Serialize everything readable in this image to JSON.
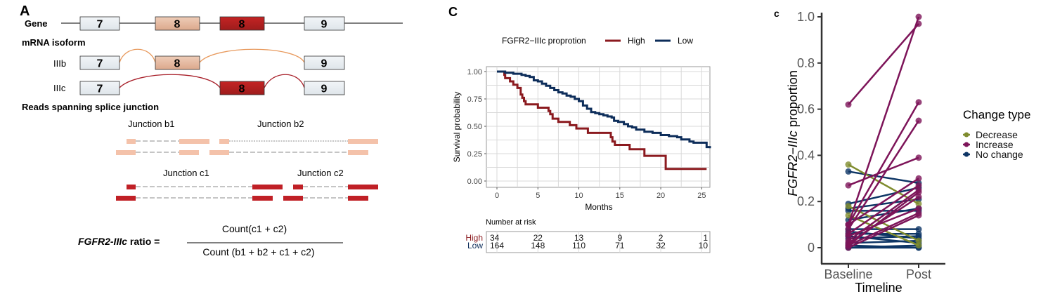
{
  "panel_a": {
    "label": "A",
    "gene_label": "Gene",
    "mrna_label": "mRNA isoform",
    "reads_label": "Reads spanning splice junction",
    "isoform_b": "IIIb",
    "isoform_c": "IIIc",
    "exons": {
      "e7": "7",
      "e8b": "8",
      "e8c": "8",
      "e9": "9"
    },
    "junctions": {
      "b1": "Junction b1",
      "b2": "Junction b2",
      "c1": "Junction c1",
      "c2": "Junction c2"
    },
    "formula": {
      "lhs_italic": "FGFR2-IIIc",
      "lhs_rest": " ratio =",
      "numerator": "Count(c1 + c2)",
      "denominator": "Count (b1 + b2 + c1 + c2)"
    },
    "colors": {
      "exon_grey": "#e9edf1",
      "exon_b": "#e8bba2",
      "exon_c": "#b5221f",
      "read_b": "#f4c2aa",
      "read_c": "#c02026",
      "arc_b": "#e89a5e",
      "arc_c": "#a8202a"
    }
  },
  "chart_data": [
    {
      "type": "line",
      "panel_label": "C",
      "subtype": "kaplan-meier",
      "title": "",
      "legend_title": "FGFR2−IIIc proprotion",
      "legend_position": "top",
      "xlabel": "Months",
      "ylabel": "Survival probability",
      "xlim": [
        0,
        26
      ],
      "ylim": [
        0,
        1
      ],
      "xticks": [
        0,
        5,
        10,
        15,
        20,
        25
      ],
      "yticks": [
        "0.00",
        "0.25",
        "0.50",
        "0.75",
        "1.00"
      ],
      "grid": true,
      "series": [
        {
          "name": "High",
          "color": "#8b1a1f",
          "steps": [
            [
              0.5,
              1.0
            ],
            [
              0.9,
              0.97
            ],
            [
              1.0,
              0.94
            ],
            [
              1.6,
              0.91
            ],
            [
              2.0,
              0.88
            ],
            [
              2.5,
              0.85
            ],
            [
              2.9,
              0.79
            ],
            [
              3.1,
              0.76
            ],
            [
              3.3,
              0.73
            ],
            [
              3.5,
              0.7
            ],
            [
              5.0,
              0.67
            ],
            [
              6.3,
              0.64
            ],
            [
              6.5,
              0.61
            ],
            [
              6.8,
              0.57
            ],
            [
              7.5,
              0.54
            ],
            [
              8.9,
              0.51
            ],
            [
              9.7,
              0.48
            ],
            [
              11.1,
              0.44
            ],
            [
              13.9,
              0.4
            ],
            [
              14.1,
              0.36
            ],
            [
              14.4,
              0.33
            ],
            [
              16.2,
              0.29
            ],
            [
              18.0,
              0.23
            ],
            [
              20.6,
              0.11
            ],
            [
              25.6,
              0.11
            ]
          ]
        },
        {
          "name": "Low",
          "color": "#0d2d5a",
          "steps": [
            [
              0,
              1.0
            ],
            [
              1,
              0.99
            ],
            [
              2,
              0.98
            ],
            [
              3,
              0.97
            ],
            [
              3.5,
              0.96
            ],
            [
              4,
              0.95
            ],
            [
              4.5,
              0.92
            ],
            [
              5,
              0.91
            ],
            [
              5.5,
              0.89
            ],
            [
              6,
              0.87
            ],
            [
              6.5,
              0.85
            ],
            [
              7,
              0.83
            ],
            [
              7.5,
              0.81
            ],
            [
              8,
              0.8
            ],
            [
              8.5,
              0.78
            ],
            [
              9,
              0.77
            ],
            [
              9.5,
              0.75
            ],
            [
              10,
              0.73
            ],
            [
              10.5,
              0.69
            ],
            [
              11,
              0.66
            ],
            [
              11.5,
              0.63
            ],
            [
              12,
              0.62
            ],
            [
              12.5,
              0.61
            ],
            [
              13,
              0.6
            ],
            [
              13.5,
              0.59
            ],
            [
              14,
              0.58
            ],
            [
              14.3,
              0.55
            ],
            [
              14.8,
              0.54
            ],
            [
              15.5,
              0.52
            ],
            [
              16,
              0.5
            ],
            [
              16.5,
              0.49
            ],
            [
              17,
              0.47
            ],
            [
              18,
              0.45
            ],
            [
              19,
              0.44
            ],
            [
              20,
              0.42
            ],
            [
              21,
              0.41
            ],
            [
              22,
              0.4
            ],
            [
              22.5,
              0.38
            ],
            [
              23.5,
              0.36
            ],
            [
              24,
              0.35
            ],
            [
              25,
              0.35
            ],
            [
              25.6,
              0.31
            ],
            [
              26,
              0.3
            ]
          ]
        }
      ],
      "risk_table": {
        "title": "Number at risk",
        "times": [
          0,
          5,
          10,
          15,
          20,
          25
        ],
        "rows": [
          {
            "name": "High",
            "color": "#8b1a1f",
            "values": [
              "34",
              "22",
              "13",
              "9",
              "2",
              "1"
            ]
          },
          {
            "name": "Low",
            "color": "#0d2d5a",
            "values": [
              "164",
              "148",
              "110",
              "71",
              "32",
              "10"
            ]
          }
        ]
      }
    },
    {
      "type": "line",
      "subtype": "paired-slope",
      "panel_label": "c",
      "title": "",
      "xlabel": "Timeline",
      "ylabel_italic": "FGFR2−IIIc",
      "ylabel_rest": " proportion",
      "categories": [
        "Baseline",
        "Post"
      ],
      "ylim": [
        0,
        1
      ],
      "yticks": [
        "0",
        "0.2",
        "0.4",
        "0.6",
        "0.8",
        "1.0"
      ],
      "legend_title": "Change type",
      "legend_position": "right",
      "legend": [
        {
          "name": "Decrease",
          "color": "#7f8c2e"
        },
        {
          "name": "Increase",
          "color": "#7d1459"
        },
        {
          "name": "No change",
          "color": "#0d3565"
        }
      ],
      "pairs": [
        {
          "type": "Increase",
          "baseline": 0.62,
          "post": 0.97
        },
        {
          "type": "Increase",
          "baseline": 0.1,
          "post": 1.0
        },
        {
          "type": "Increase",
          "baseline": 0.1,
          "post": 0.63
        },
        {
          "type": "Increase",
          "baseline": 0.08,
          "post": 0.55
        },
        {
          "type": "Increase",
          "baseline": 0.27,
          "post": 0.39
        },
        {
          "type": "Increase",
          "baseline": 0.1,
          "post": 0.3
        },
        {
          "type": "Increase",
          "baseline": 0.06,
          "post": 0.27
        },
        {
          "type": "Increase",
          "baseline": 0.03,
          "post": 0.25
        },
        {
          "type": "Increase",
          "baseline": 0.01,
          "post": 0.24
        },
        {
          "type": "Increase",
          "baseline": 0.02,
          "post": 0.22
        },
        {
          "type": "Increase",
          "baseline": 0.05,
          "post": 0.17
        },
        {
          "type": "Increase",
          "baseline": 0.01,
          "post": 0.15
        },
        {
          "type": "Increase",
          "baseline": 0.0,
          "post": 0.14
        },
        {
          "type": "Decrease",
          "baseline": 0.36,
          "post": 0.19
        },
        {
          "type": "Decrease",
          "baseline": 0.14,
          "post": 0.01
        },
        {
          "type": "Decrease",
          "baseline": 0.18,
          "post": 0.03
        },
        {
          "type": "No change",
          "baseline": 0.33,
          "post": 0.28
        },
        {
          "type": "No change",
          "baseline": 0.19,
          "post": 0.26
        },
        {
          "type": "No change",
          "baseline": 0.17,
          "post": 0.21
        },
        {
          "type": "No change",
          "baseline": 0.16,
          "post": 0.16
        },
        {
          "type": "No change",
          "baseline": 0.12,
          "post": 0.17
        },
        {
          "type": "No change",
          "baseline": 0.08,
          "post": 0.08
        },
        {
          "type": "No change",
          "baseline": 0.07,
          "post": 0.04
        },
        {
          "type": "No change",
          "baseline": 0.06,
          "post": 0.06
        },
        {
          "type": "No change",
          "baseline": 0.05,
          "post": 0.02
        },
        {
          "type": "No change",
          "baseline": 0.04,
          "post": 0.05
        },
        {
          "type": "No change",
          "baseline": 0.02,
          "post": 0.03
        },
        {
          "type": "No change",
          "baseline": 0.01,
          "post": 0.0
        },
        {
          "type": "No change",
          "baseline": 0.0,
          "post": 0.01
        },
        {
          "type": "No change",
          "baseline": 0.0,
          "post": 0.0
        }
      ]
    }
  ]
}
